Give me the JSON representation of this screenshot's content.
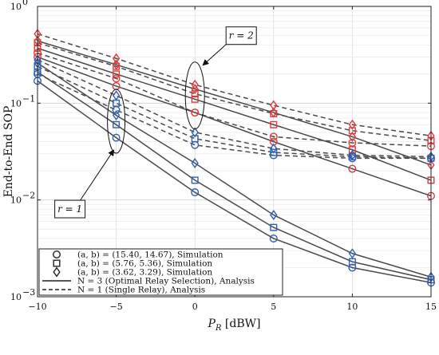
{
  "chart_data": {
    "type": "line",
    "xlabel_main": "P",
    "xlabel_sub": "R",
    "xlabel_unit": " [dBW]",
    "ylabel": "End-to-End SOP",
    "y_scale": "log",
    "xlim": [
      -10,
      15
    ],
    "ylim": [
      0.001,
      1
    ],
    "grid": true,
    "x_ticks": [
      "−10",
      "−5",
      "0",
      "5",
      "10",
      "15"
    ],
    "y_ticks": [
      {
        "base": "10",
        "exp": "0"
      },
      {
        "base": "10",
        "exp": "−1"
      },
      {
        "base": "10",
        "exp": "−2"
      },
      {
        "base": "10",
        "exp": "−3"
      }
    ],
    "x": [
      -10,
      -5,
      0,
      5,
      10,
      15
    ],
    "series": [
      {
        "r": 2,
        "N": 1,
        "marker": "circle",
        "color": "#e03a3a",
        "style": "dashed",
        "values": [
          0.33,
          0.18,
          0.08,
          0.045,
          0.039,
          0.036
        ]
      },
      {
        "r": 2,
        "N": 1,
        "marker": "square",
        "color": "#e03a3a",
        "style": "dashed",
        "values": [
          0.42,
          0.24,
          0.125,
          0.078,
          0.052,
          0.041
        ]
      },
      {
        "r": 2,
        "N": 1,
        "marker": "diamond",
        "color": "#e03a3a",
        "style": "dashed",
        "values": [
          0.52,
          0.29,
          0.155,
          0.095,
          0.06,
          0.046
        ]
      },
      {
        "r": 2,
        "N": 3,
        "marker": "circle",
        "color": "#e03a3a",
        "style": "solid",
        "values": [
          0.3,
          0.15,
          0.08,
          0.04,
          0.021,
          0.011
        ]
      },
      {
        "r": 2,
        "N": 3,
        "marker": "square",
        "color": "#e03a3a",
        "style": "solid",
        "values": [
          0.37,
          0.2,
          0.11,
          0.06,
          0.033,
          0.016
        ]
      },
      {
        "r": 2,
        "N": 3,
        "marker": "diamond",
        "color": "#e03a3a",
        "style": "solid",
        "values": [
          0.44,
          0.25,
          0.14,
          0.08,
          0.045,
          0.023
        ]
      },
      {
        "r": 1,
        "N": 1,
        "marker": "circle",
        "color": "#2f5fb3",
        "style": "dashed",
        "values": [
          0.2,
          0.085,
          0.037,
          0.029,
          0.027,
          0.027
        ]
      },
      {
        "r": 1,
        "N": 1,
        "marker": "square",
        "color": "#2f5fb3",
        "style": "dashed",
        "values": [
          0.24,
          0.1,
          0.043,
          0.031,
          0.028,
          0.027
        ]
      },
      {
        "r": 1,
        "N": 1,
        "marker": "diamond",
        "color": "#2f5fb3",
        "style": "dashed",
        "values": [
          0.28,
          0.12,
          0.05,
          0.034,
          0.029,
          0.028
        ]
      },
      {
        "r": 1,
        "N": 3,
        "marker": "circle",
        "color": "#2f5fb3",
        "style": "solid",
        "values": [
          0.17,
          0.044,
          0.012,
          0.004,
          0.002,
          0.0014
        ]
      },
      {
        "r": 1,
        "N": 3,
        "marker": "square",
        "color": "#2f5fb3",
        "style": "solid",
        "values": [
          0.21,
          0.06,
          0.016,
          0.0052,
          0.0023,
          0.0015
        ]
      },
      {
        "r": 1,
        "N": 3,
        "marker": "diamond",
        "color": "#2f5fb3",
        "style": "solid",
        "values": [
          0.26,
          0.075,
          0.024,
          0.007,
          0.0028,
          0.0016
        ]
      }
    ],
    "legend": {
      "placement": "bottom-left",
      "entries": [
        {
          "marker": "circle",
          "text": "(a, b) = (15.40, 14.67), Simulation"
        },
        {
          "marker": "square",
          "text": "(a, b) = (5.76, 5.36), Simulation"
        },
        {
          "marker": "diamond",
          "text": "(a, b) = (3.62, 3.29), Simulation"
        },
        {
          "line": "solid",
          "text": "N = 3 (Optimal Relay Selection), Analysis"
        },
        {
          "line": "dashed",
          "text": "N = 1 (Single Relay), Analysis"
        }
      ]
    },
    "annotations": [
      {
        "text": "r = 2",
        "target_x": 0,
        "target_y": 0.12
      },
      {
        "text": "r = 1",
        "target_x": -5,
        "target_y": 0.065
      }
    ]
  }
}
